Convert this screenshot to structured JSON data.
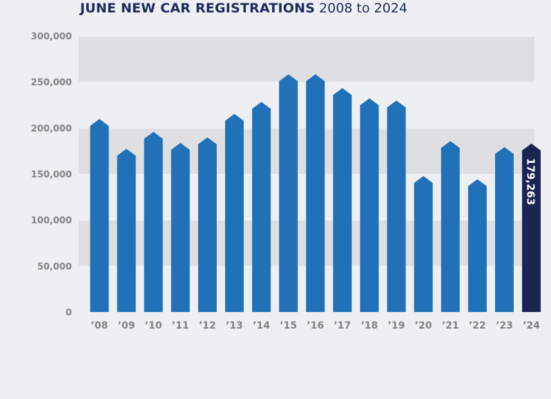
{
  "chart_data": {
    "type": "bar",
    "title_bold": "JUNE NEW CAR REGISTRATIONS",
    "title_rest": "2008 to 2024",
    "categories": [
      "’08",
      "’09",
      "’10",
      "’11",
      "’12",
      "’13",
      "’14",
      "’15",
      "’16",
      "’17",
      "’18",
      "’19",
      "’20",
      "’21",
      "’22",
      "’23",
      "’24"
    ],
    "values": [
      206000,
      173500,
      192000,
      180000,
      186000,
      211500,
      224500,
      254500,
      254500,
      239500,
      228500,
      226000,
      144000,
      182000,
      140500,
      175500,
      179263
    ],
    "highlight_index": 16,
    "highlight_label": "179,263",
    "ylim": [
      0,
      300000
    ],
    "yticks": [
      0,
      50000,
      100000,
      150000,
      200000,
      250000,
      300000
    ],
    "ytick_labels": [
      "0",
      "50,000",
      "100,000",
      "150,000",
      "200,000",
      "250,000",
      "300,000"
    ],
    "grid": "alternating bands",
    "colors": {
      "bar": "#2171b8",
      "highlight_bar": "#1b2554",
      "band_dark": "#dfdfe2",
      "band_light": "#eeeff2",
      "title": "#1c2a5e",
      "axis_text": "#7f8184"
    }
  }
}
